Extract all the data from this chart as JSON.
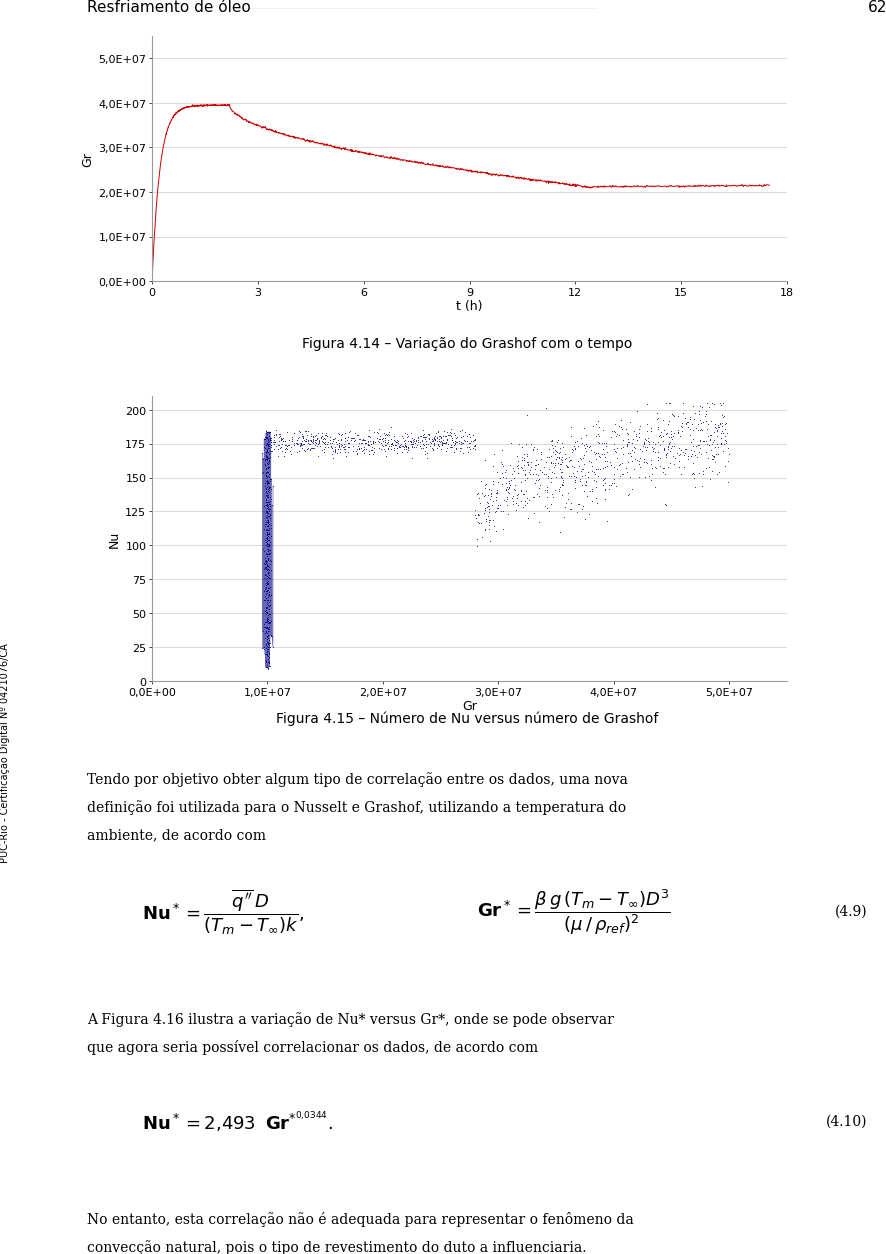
{
  "page_title": "Resfriamento de óleo",
  "page_number": "62",
  "fig1_caption": "Figura 4.14 – Variação do Grashof com o tempo",
  "fig2_caption": "Figura 4.15 – Número de Nu versus número de Grashof",
  "fig1_xlabel": "t (h)",
  "fig1_ylabel": "Gr",
  "fig1_xlim": [
    0,
    18
  ],
  "fig1_ylim": [
    0.0,
    55000000.0
  ],
  "fig1_xticks": [
    0,
    3,
    6,
    9,
    12,
    15,
    18
  ],
  "fig1_yticks": [
    0.0,
    10000000.0,
    20000000.0,
    30000000.0,
    40000000.0,
    50000000.0
  ],
  "fig1_yticklabels": [
    "0,0E+00",
    "1,0E+07",
    "2,0E+07",
    "3,0E+07",
    "4,0E+07",
    "5,0E+07"
  ],
  "fig2_xlabel": "Gr",
  "fig2_ylabel": "Nu",
  "fig2_xlim": [
    0.0,
    55000000.0
  ],
  "fig2_ylim": [
    0,
    210
  ],
  "fig2_xticks": [
    0.0,
    10000000.0,
    20000000.0,
    30000000.0,
    40000000.0,
    50000000.0
  ],
  "fig2_xticklabels": [
    "0,0E+00",
    "1,0E+07",
    "2,0E+07",
    "3,0E+07",
    "4,0E+07",
    "5,0E+07"
  ],
  "fig2_yticks": [
    0,
    25,
    50,
    75,
    100,
    125,
    150,
    175,
    200
  ],
  "line1_color": "#cc0000",
  "line2_color": "#000080",
  "sidebar_text": "PUC-Rio - Certificação Digital Nº 0421076/CA",
  "eq49_label": "(4.9)",
  "eq410_label": "(4.10)",
  "body1_lines": [
    "Tendo por objetivo obter algum tipo de correlação entre os dados, uma nova",
    "definição foi utilizada para o Nusselt e Grashof, utilizando a temperatura do",
    "ambiente, de acordo com"
  ],
  "body2_lines": [
    "A Figura 4.16 ilustra a variação de Nu* versus Gr*, onde se pode observar",
    "que agora seria possível correlacionar os dados, de acordo com"
  ],
  "body3_lines": [
    "No entanto, esta correlação não é adequada para representar o fenômeno da",
    "convecção natural, pois o tipo de revestimento do duto a influenciaria."
  ]
}
